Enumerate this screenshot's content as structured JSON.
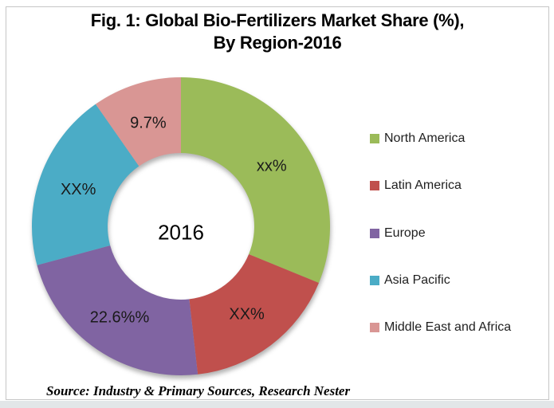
{
  "figure": {
    "title_line1": "Fig. 1: Global Bio-Fertilizers Market Share (%),",
    "title_line2": "By Region-2016",
    "source": "Source: Industry & Primary Sources, Research Nester"
  },
  "chart_data": {
    "type": "pie",
    "subtype": "donut",
    "title": "Fig. 1: Global Bio-Fertilizers Market Share (%), By Region-2016",
    "center_label": "2016",
    "legend_position": "right",
    "hole_ratio": 0.49,
    "categories": [
      "North America",
      "Latin America",
      "Europe",
      "Asia Pacific",
      "Middle East and Africa"
    ],
    "values": [
      31.2,
      17.0,
      22.6,
      19.5,
      9.7
    ],
    "display_labels": [
      "xx%",
      "XX%",
      "22.6%%",
      "XX%",
      "9.7%"
    ],
    "colors": [
      "#9BBB59",
      "#C0504D",
      "#8064A2",
      "#4BACC6",
      "#D99694"
    ]
  }
}
